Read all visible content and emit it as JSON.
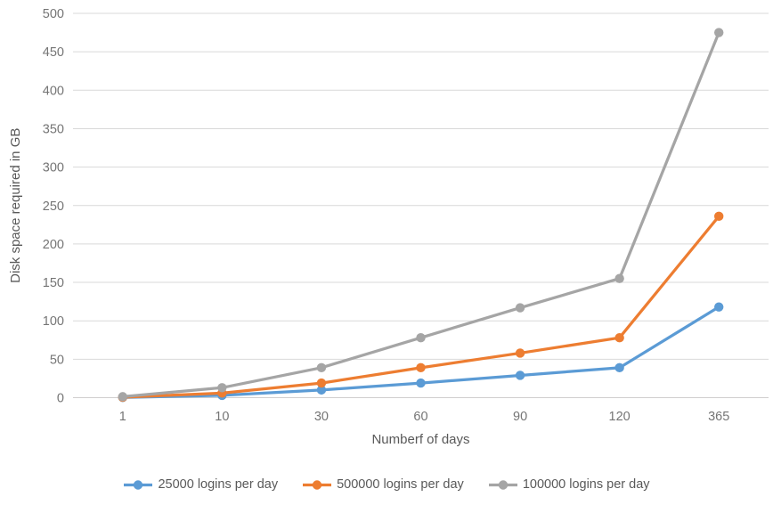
{
  "chart_data": {
    "type": "line",
    "title": "",
    "xlabel": "Numberf of days",
    "ylabel": "Disk space required in GB",
    "categories": [
      "1",
      "10",
      "30",
      "60",
      "90",
      "120",
      "365"
    ],
    "yticks": [
      0,
      50,
      100,
      150,
      200,
      250,
      300,
      350,
      400,
      450,
      500
    ],
    "ylim": [
      0,
      500
    ],
    "grid": true,
    "legend_position": "bottom",
    "series": [
      {
        "name": "25000 logins per day",
        "color": "#5B9BD5",
        "values": [
          0.3,
          3,
          10,
          19,
          29,
          39,
          118
        ]
      },
      {
        "name": "500000 logins per day",
        "color": "#ED7D31",
        "values": [
          0.6,
          6,
          19,
          39,
          58,
          78,
          236
        ]
      },
      {
        "name": "100000 logins per day",
        "color": "#A5A5A5",
        "values": [
          1.3,
          13,
          39,
          78,
          117,
          155,
          475
        ]
      }
    ],
    "colors": {
      "gridline": "#D9D9D9",
      "axis_line": "#D0CECE",
      "tick_label": "#757575",
      "axis_title": "#595959",
      "legend_text": "#595959",
      "background": "#FFFFFF"
    }
  }
}
